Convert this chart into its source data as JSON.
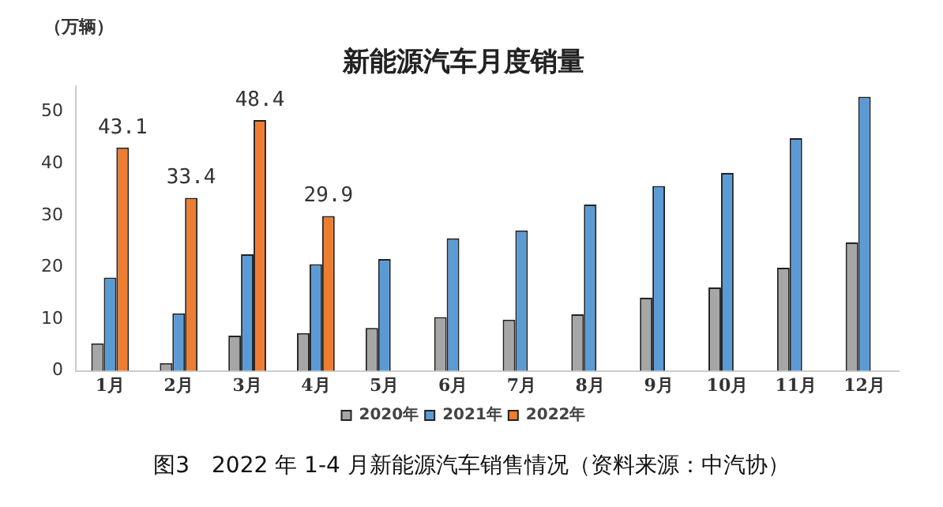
{
  "chart_data": {
    "type": "bar",
    "title": "新能源汽车月度销量",
    "ylabel": "（万辆）",
    "categories": [
      "1月",
      "2月",
      "3月",
      "4月",
      "5月",
      "6月",
      "7月",
      "8月",
      "9月",
      "10月",
      "11月",
      "12月"
    ],
    "series": [
      {
        "name": "2020年",
        "color": "#a6a6a6",
        "values": [
          5.3,
          1.5,
          6.8,
          7.3,
          8.3,
          10.4,
          9.9,
          10.9,
          14.1,
          16.1,
          19.9,
          24.8
        ]
      },
      {
        "name": "2021年",
        "color": "#5b9bd5",
        "values": [
          18.0,
          11.1,
          22.5,
          20.6,
          21.6,
          25.6,
          27.1,
          32.1,
          35.7,
          38.2,
          44.9,
          52.9
        ]
      },
      {
        "name": "2022年",
        "color": "#ed7d31",
        "values": [
          43.1,
          33.4,
          48.4,
          29.9,
          null,
          null,
          null,
          null,
          null,
          null,
          null,
          null
        ],
        "value_labels": [
          "43.1",
          "33.4",
          "48.4",
          "29.9",
          null,
          null,
          null,
          null,
          null,
          null,
          null,
          null
        ]
      }
    ],
    "ylim": [
      0,
      55
    ],
    "yticks": [
      0,
      10,
      20,
      30,
      40,
      50
    ],
    "grid": false,
    "legend": "bottom",
    "annotations": [
      "图3　2022 年 1-4 月新能源汽车销售情况（资料来源：中汽协）"
    ]
  }
}
